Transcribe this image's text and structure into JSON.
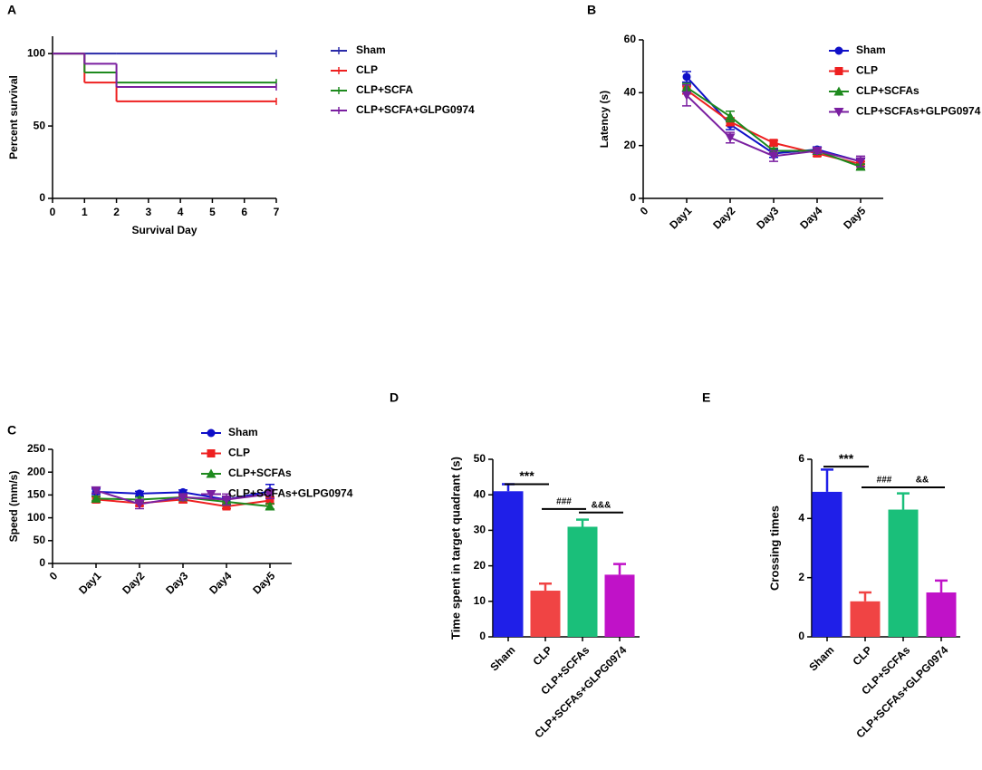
{
  "chart_data": [
    {
      "panel_label": "A",
      "type": "survival",
      "x_label": "Survival Day",
      "y_label": "Percent survival",
      "x": [
        0,
        1,
        2,
        7
      ],
      "xlim": [
        0,
        7
      ],
      "xticks": [
        0,
        1,
        2,
        3,
        4,
        5,
        6,
        7
      ],
      "ylim": [
        0,
        112
      ],
      "yticks": [
        0,
        50,
        100
      ],
      "series": [
        {
          "name": "Sham",
          "color": "#2a2aa8",
          "values": [
            100,
            100,
            100,
            100
          ]
        },
        {
          "name": "CLP",
          "color": "#ee2020",
          "values": [
            100,
            80,
            67,
            67
          ]
        },
        {
          "name": "CLP+SCFA",
          "color": "#1e8a1e",
          "values": [
            100,
            87,
            80,
            80
          ]
        },
        {
          "name": "CLP+SCFA+GLPG0974",
          "color": "#7a1fa0",
          "values": [
            100,
            93,
            77,
            77
          ]
        }
      ]
    },
    {
      "panel_label": "B",
      "type": "line",
      "y_label": "Latency (s)",
      "categories": [
        "0",
        "Day1",
        "Day2",
        "Day3",
        "Day4",
        "Day5"
      ],
      "ylim": [
        0,
        60
      ],
      "yticks": [
        0,
        20,
        40,
        60
      ],
      "series": [
        {
          "name": "Sham",
          "color": "#1010c8",
          "marker": "circle",
          "values": [
            null,
            46,
            28,
            17,
            18.5,
            14
          ],
          "errors": [
            null,
            2,
            2,
            1.5,
            1,
            1
          ]
        },
        {
          "name": "CLP",
          "color": "#ee2020",
          "marker": "square",
          "values": [
            null,
            41,
            29,
            21,
            17,
            13
          ],
          "errors": [
            null,
            1.5,
            1.5,
            1,
            1,
            1
          ]
        },
        {
          "name": "CLP+SCFAs",
          "color": "#1e8a1e",
          "marker": "triangle-up",
          "values": [
            null,
            42,
            31,
            18,
            18,
            12
          ],
          "errors": [
            null,
            1.5,
            2,
            1,
            1,
            1
          ]
        },
        {
          "name": "CLP+SCFAs+GLPG0974",
          "color": "#7a1fa0",
          "marker": "triangle-down",
          "values": [
            null,
            39,
            23,
            16,
            18,
            14
          ],
          "errors": [
            null,
            4,
            2,
            2,
            1,
            2
          ]
        }
      ]
    },
    {
      "panel_label": "C",
      "type": "line",
      "y_label": "Speed (mm/s)",
      "categories": [
        "0",
        "Day1",
        "Day2",
        "Day3",
        "Day4",
        "Day5"
      ],
      "ylim": [
        0,
        250
      ],
      "yticks": [
        0,
        50,
        100,
        150,
        200,
        250
      ],
      "series": [
        {
          "name": "Sham",
          "color": "#1010c8",
          "marker": "circle",
          "values": [
            null,
            157,
            153,
            156,
            140,
            158
          ],
          "errors": [
            null,
            6,
            5,
            5,
            5,
            15
          ]
        },
        {
          "name": "CLP",
          "color": "#ee2020",
          "marker": "square",
          "values": [
            null,
            140,
            132,
            140,
            125,
            138
          ],
          "errors": [
            null,
            6,
            6,
            7,
            5,
            8
          ]
        },
        {
          "name": "CLP+SCFAs",
          "color": "#1e8a1e",
          "marker": "triangle-up",
          "values": [
            null,
            142,
            140,
            145,
            135,
            125
          ],
          "errors": [
            null,
            5,
            5,
            5,
            5,
            6
          ]
        },
        {
          "name": "CLP+SCFAs+GLPG0974",
          "color": "#7a1fa0",
          "marker": "triangle-down",
          "values": [
            null,
            160,
            130,
            145,
            140,
            152
          ],
          "errors": [
            null,
            6,
            10,
            6,
            12,
            10
          ]
        }
      ]
    },
    {
      "panel_label": "D",
      "type": "bar",
      "y_label": "Time spent in target quadrant (s)",
      "categories": [
        "Sham",
        "CLP",
        "CLP+SCFAs",
        "CLP+SCFAs+GLPG0974"
      ],
      "values": [
        41,
        13,
        31,
        17.5
      ],
      "errors": [
        2,
        2,
        2,
        3
      ],
      "colors": [
        "#1f1fe8",
        "#f04444",
        "#1abf7a",
        "#c012c8"
      ],
      "ylim": [
        0,
        50
      ],
      "yticks": [
        0,
        10,
        20,
        30,
        40,
        50
      ],
      "annotations": [
        "***",
        "###",
        "&&&"
      ]
    },
    {
      "panel_label": "E",
      "type": "bar",
      "y_label": "Crossing times",
      "categories": [
        "Sham",
        "CLP",
        "CLP+SCFAs",
        "CLP+SCFAs+GLPG0974"
      ],
      "values": [
        4.9,
        1.2,
        4.3,
        1.5
      ],
      "errors": [
        0.75,
        0.3,
        0.55,
        0.4
      ],
      "colors": [
        "#1f1fe8",
        "#f04444",
        "#1abf7a",
        "#c012c8"
      ],
      "ylim": [
        0,
        6
      ],
      "yticks": [
        0,
        2,
        4,
        6
      ],
      "annotations": [
        "***",
        "###",
        "&&"
      ]
    }
  ]
}
